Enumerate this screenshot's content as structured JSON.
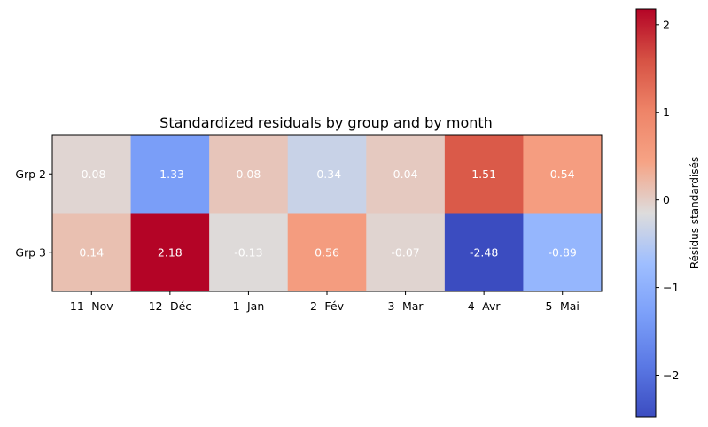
{
  "chart_data": {
    "type": "heatmap",
    "title": "Standardized residuals by group and by month",
    "rows": [
      "Grp 2",
      "Grp 3"
    ],
    "columns": [
      "11- Nov",
      "12- Déc",
      "1- Jan",
      "2- Fév",
      "3- Mar",
      "4- Avr",
      "5- Mai"
    ],
    "values": [
      [
        -0.08,
        -1.33,
        0.08,
        -0.34,
        0.04,
        1.51,
        0.54
      ],
      [
        0.14,
        2.18,
        -0.13,
        0.56,
        -0.07,
        -2.48,
        -0.89
      ]
    ],
    "value_labels": [
      [
        "-0.08",
        "-1.33",
        "0.08",
        "-0.34",
        "0.04",
        "1.51",
        "0.54"
      ],
      [
        "0.14",
        "2.18",
        "-0.13",
        "0.56",
        "-0.07",
        "-2.48",
        "-0.89"
      ]
    ],
    "colormap": "coolwarm",
    "colorbar": {
      "label": "Résidus standardisés",
      "range": [
        -2.48,
        2.18
      ],
      "ticks": [
        -2,
        -1,
        0,
        1,
        2
      ],
      "tick_labels": [
        "−2",
        "−1",
        "0",
        "1",
        "2"
      ]
    }
  }
}
